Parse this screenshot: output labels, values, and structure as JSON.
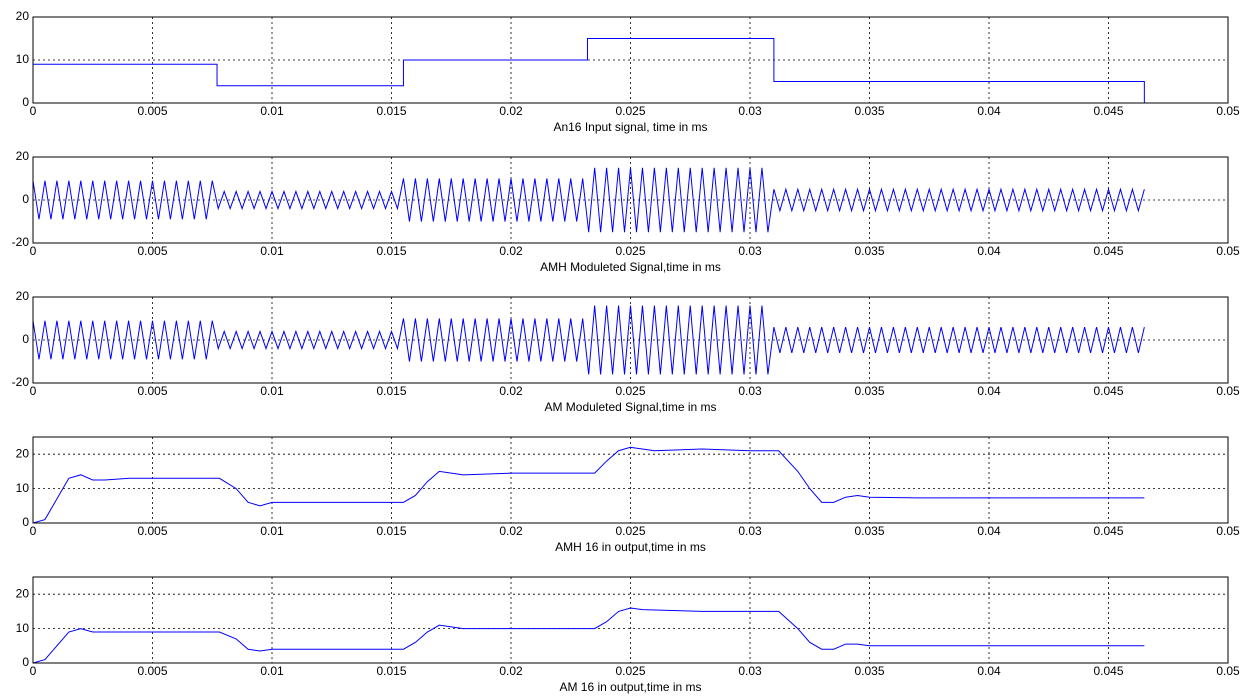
{
  "chart_data": [
    {
      "type": "line",
      "xlabel": "An16 Input signal, time in ms",
      "xlim": [
        0,
        0.05
      ],
      "xticks": [
        0,
        0.005,
        0.01,
        0.015,
        0.02,
        0.025,
        0.03,
        0.035,
        0.04,
        0.045,
        0.05
      ],
      "ylim": [
        0,
        20
      ],
      "yticks": [
        0,
        10,
        20
      ],
      "grid": true,
      "color": "#0000ff",
      "x": [
        0,
        0.0077,
        0.0077,
        0.0155,
        0.0155,
        0.0232,
        0.0232,
        0.031,
        0.031,
        0.0465,
        0.0465
      ],
      "values": [
        9,
        9,
        4,
        4,
        10,
        10,
        15,
        15,
        5,
        5,
        0
      ]
    },
    {
      "type": "line",
      "xlabel": "AMH Moduleted Signal,time in ms",
      "xlim": [
        0,
        0.05
      ],
      "xticks": [
        0,
        0.005,
        0.01,
        0.015,
        0.02,
        0.025,
        0.03,
        0.035,
        0.04,
        0.045,
        0.05
      ],
      "ylim": [
        -20,
        20
      ],
      "yticks": [
        -20,
        0,
        20
      ],
      "grid": true,
      "color": "#0000ff",
      "x": [
        0,
        0.00025,
        0.0005,
        0.00075,
        0.001,
        0.00125,
        0.0015,
        0.00175,
        0.002,
        0.00225,
        0.0025,
        0.00275,
        0.003,
        0.00325,
        0.0035,
        0.00375,
        0.004,
        0.00425,
        0.0045,
        0.00475,
        0.005,
        0.00525,
        0.0055,
        0.00575,
        0.006,
        0.00625,
        0.0065,
        0.00675,
        0.007,
        0.00725,
        0.0075,
        0.00775,
        0.008,
        0.00825,
        0.0085,
        0.00875,
        0.009,
        0.00925,
        0.0095,
        0.00975,
        0.01,
        0.01025,
        0.0105,
        0.01075,
        0.011,
        0.01125,
        0.0115,
        0.01175,
        0.012,
        0.01225,
        0.0125,
        0.01275,
        0.013,
        0.01325,
        0.0135,
        0.01375,
        0.014,
        0.01425,
        0.0145,
        0.01475,
        0.015,
        0.01525,
        0.0155,
        0.01575,
        0.016,
        0.01625,
        0.0165,
        0.01675,
        0.017,
        0.01725,
        0.0175,
        0.01775,
        0.018,
        0.01825,
        0.0185,
        0.01875,
        0.019,
        0.01925,
        0.0195,
        0.01975,
        0.02,
        0.02025,
        0.0205,
        0.02075,
        0.021,
        0.02125,
        0.0215,
        0.02175,
        0.022,
        0.02225,
        0.0225,
        0.02275,
        0.023,
        0.02325,
        0.0235,
        0.02375,
        0.024,
        0.02425,
        0.0245,
        0.02475,
        0.025,
        0.02525,
        0.0255,
        0.02575,
        0.026,
        0.02625,
        0.0265,
        0.02675,
        0.027,
        0.02725,
        0.0275,
        0.02775,
        0.028,
        0.02825,
        0.0285,
        0.02875,
        0.029,
        0.02925,
        0.0295,
        0.02975,
        0.03,
        0.03025,
        0.0305,
        0.03075,
        0.031,
        0.03125,
        0.0315,
        0.03175,
        0.032,
        0.03225,
        0.0325,
        0.03275,
        0.033,
        0.03325,
        0.0335,
        0.03375,
        0.034,
        0.03425,
        0.0345,
        0.03475,
        0.035,
        0.03525,
        0.0355,
        0.03575,
        0.036,
        0.03625,
        0.0365,
        0.03675,
        0.037,
        0.03725,
        0.0375,
        0.03775,
        0.038,
        0.03825,
        0.0385,
        0.03875,
        0.039,
        0.03925,
        0.0395,
        0.03975,
        0.04,
        0.04025,
        0.0405,
        0.04075,
        0.041,
        0.04125,
        0.0415,
        0.04175,
        0.042,
        0.04225,
        0.0425,
        0.04275,
        0.043,
        0.04325,
        0.0435,
        0.04375,
        0.044,
        0.04425,
        0.0445,
        0.04475,
        0.045,
        0.04525,
        0.0455,
        0.04575,
        0.046,
        0.04625,
        0.0465
      ],
      "values": [
        9,
        -9,
        9,
        -9,
        9,
        -9,
        9,
        -9,
        9,
        -9,
        9,
        -9,
        9,
        -9,
        9,
        -9,
        9,
        -9,
        9,
        -9,
        9,
        -9,
        9,
        -9,
        9,
        -9,
        9,
        -9,
        9,
        -9,
        9,
        -4,
        4,
        -4,
        4,
        -4,
        4,
        -4,
        4,
        -4,
        4,
        -4,
        4,
        -4,
        4,
        -4,
        4,
        -4,
        4,
        -4,
        4,
        -4,
        4,
        -4,
        4,
        -4,
        4,
        -4,
        4,
        -4,
        4,
        -4,
        10,
        -10,
        10,
        -10,
        10,
        -10,
        10,
        -10,
        10,
        -10,
        10,
        -10,
        10,
        -10,
        10,
        -10,
        10,
        -10,
        10,
        -10,
        10,
        -10,
        10,
        -10,
        10,
        -10,
        10,
        -10,
        10,
        -10,
        10,
        -15,
        15,
        -15,
        15,
        -15,
        15,
        -15,
        15,
        -15,
        15,
        -15,
        15,
        -15,
        15,
        -15,
        15,
        -15,
        15,
        -15,
        15,
        -15,
        15,
        -15,
        15,
        -15,
        15,
        -15,
        15,
        -15,
        15,
        -15,
        5,
        -5,
        5,
        -5,
        5,
        -5,
        5,
        -5,
        5,
        -5,
        5,
        -5,
        5,
        -5,
        5,
        -5,
        5,
        -5,
        5,
        -5,
        5,
        -5,
        5,
        -5,
        5,
        -5,
        5,
        -5,
        5,
        -5,
        5,
        -5,
        5,
        -5,
        5,
        -5,
        5,
        -5,
        5,
        -5,
        5,
        -5,
        5,
        -5,
        5,
        -5,
        5,
        -5,
        5,
        -5,
        5,
        -5,
        5,
        -5,
        5,
        -5,
        5,
        -5,
        5,
        -5,
        5,
        -5,
        5
      ]
    },
    {
      "type": "line",
      "xlabel": "AM Moduleted Signal,time in ms",
      "xlim": [
        0,
        0.05
      ],
      "xticks": [
        0,
        0.005,
        0.01,
        0.015,
        0.02,
        0.025,
        0.03,
        0.035,
        0.04,
        0.045,
        0.05
      ],
      "ylim": [
        -20,
        20
      ],
      "yticks": [
        -20,
        0,
        20
      ],
      "grid": true,
      "color": "#0000ff",
      "x": [
        0,
        0.00025,
        0.0005,
        0.00075,
        0.001,
        0.00125,
        0.0015,
        0.00175,
        0.002,
        0.00225,
        0.0025,
        0.00275,
        0.003,
        0.00325,
        0.0035,
        0.00375,
        0.004,
        0.00425,
        0.0045,
        0.00475,
        0.005,
        0.00525,
        0.0055,
        0.00575,
        0.006,
        0.00625,
        0.0065,
        0.00675,
        0.007,
        0.00725,
        0.0075,
        0.00775,
        0.008,
        0.00825,
        0.0085,
        0.00875,
        0.009,
        0.00925,
        0.0095,
        0.00975,
        0.01,
        0.01025,
        0.0105,
        0.01075,
        0.011,
        0.01125,
        0.0115,
        0.01175,
        0.012,
        0.01225,
        0.0125,
        0.01275,
        0.013,
        0.01325,
        0.0135,
        0.01375,
        0.014,
        0.01425,
        0.0145,
        0.01475,
        0.015,
        0.01525,
        0.0155,
        0.01575,
        0.016,
        0.01625,
        0.0165,
        0.01675,
        0.017,
        0.01725,
        0.0175,
        0.01775,
        0.018,
        0.01825,
        0.0185,
        0.01875,
        0.019,
        0.01925,
        0.0195,
        0.01975,
        0.02,
        0.02025,
        0.0205,
        0.02075,
        0.021,
        0.02125,
        0.0215,
        0.02175,
        0.022,
        0.02225,
        0.0225,
        0.02275,
        0.023,
        0.02325,
        0.0235,
        0.02375,
        0.024,
        0.02425,
        0.0245,
        0.02475,
        0.025,
        0.02525,
        0.0255,
        0.02575,
        0.026,
        0.02625,
        0.0265,
        0.02675,
        0.027,
        0.02725,
        0.0275,
        0.02775,
        0.028,
        0.02825,
        0.0285,
        0.02875,
        0.029,
        0.02925,
        0.0295,
        0.02975,
        0.03,
        0.03025,
        0.0305,
        0.03075,
        0.031,
        0.03125,
        0.0315,
        0.03175,
        0.032,
        0.03225,
        0.0325,
        0.03275,
        0.033,
        0.03325,
        0.0335,
        0.03375,
        0.034,
        0.03425,
        0.0345,
        0.03475,
        0.035,
        0.03525,
        0.0355,
        0.03575,
        0.036,
        0.03625,
        0.0365,
        0.03675,
        0.037,
        0.03725,
        0.0375,
        0.03775,
        0.038,
        0.03825,
        0.0385,
        0.03875,
        0.039,
        0.03925,
        0.0395,
        0.03975,
        0.04,
        0.04025,
        0.0405,
        0.04075,
        0.041,
        0.04125,
        0.0415,
        0.04175,
        0.042,
        0.04225,
        0.0425,
        0.04275,
        0.043,
        0.04325,
        0.0435,
        0.04375,
        0.044,
        0.04425,
        0.0445,
        0.04475,
        0.045,
        0.04525,
        0.0455,
        0.04575,
        0.046,
        0.04625,
        0.0465
      ],
      "values": [
        9,
        -9,
        9,
        -9,
        9,
        -9,
        9,
        -9,
        9,
        -9,
        9,
        -9,
        9,
        -9,
        9,
        -9,
        9,
        -9,
        9,
        -9,
        9,
        -9,
        9,
        -9,
        9,
        -9,
        9,
        -9,
        9,
        -9,
        9,
        -4,
        4,
        -4,
        4,
        -4,
        4,
        -4,
        4,
        -4,
        4,
        -4,
        4,
        -4,
        4,
        -4,
        4,
        -4,
        4,
        -4,
        4,
        -4,
        4,
        -4,
        4,
        -4,
        4,
        -4,
        4,
        -4,
        4,
        -4,
        10,
        -10,
        10,
        -10,
        10,
        -10,
        10,
        -10,
        10,
        -10,
        10,
        -10,
        10,
        -10,
        10,
        -10,
        10,
        -10,
        10,
        -10,
        10,
        -10,
        10,
        -10,
        10,
        -10,
        10,
        -10,
        10,
        -10,
        10,
        -16,
        16,
        -16,
        16,
        -16,
        16,
        -16,
        16,
        -16,
        16,
        -16,
        16,
        -16,
        16,
        -16,
        16,
        -16,
        16,
        -16,
        16,
        -16,
        16,
        -16,
        16,
        -16,
        16,
        -16,
        16,
        -16,
        16,
        -16,
        6,
        -6,
        6,
        -6,
        6,
        -6,
        6,
        -6,
        6,
        -6,
        6,
        -6,
        6,
        -6,
        6,
        -6,
        6,
        -6,
        6,
        -6,
        6,
        -6,
        6,
        -6,
        6,
        -6,
        6,
        -6,
        6,
        -6,
        6,
        -6,
        6,
        -6,
        6,
        -6,
        6,
        -6,
        6,
        -6,
        6,
        -6,
        6,
        -6,
        6,
        -6,
        6,
        -6,
        6,
        -6,
        6,
        -6,
        6,
        -6,
        6,
        -6,
        6,
        -6,
        6,
        -6,
        6,
        -6,
        6
      ]
    },
    {
      "type": "line",
      "xlabel": "AMH 16 in output,time in ms",
      "xlim": [
        0,
        0.05
      ],
      "xticks": [
        0,
        0.005,
        0.01,
        0.015,
        0.02,
        0.025,
        0.03,
        0.035,
        0.04,
        0.045,
        0.05
      ],
      "ylim": [
        0,
        25
      ],
      "yticks": [
        0,
        10,
        20
      ],
      "grid": true,
      "color": "#0000ff",
      "x": [
        0,
        0.0005,
        0.001,
        0.0015,
        0.002,
        0.0025,
        0.003,
        0.004,
        0.006,
        0.0078,
        0.0085,
        0.009,
        0.0095,
        0.01,
        0.012,
        0.0155,
        0.016,
        0.0165,
        0.017,
        0.0175,
        0.018,
        0.02,
        0.0235,
        0.024,
        0.0245,
        0.025,
        0.0255,
        0.026,
        0.028,
        0.03,
        0.0312,
        0.032,
        0.0325,
        0.033,
        0.0335,
        0.034,
        0.0345,
        0.035,
        0.037,
        0.0465
      ],
      "values": [
        0,
        1,
        7,
        13,
        14,
        12.5,
        12.5,
        13,
        13,
        13,
        10,
        6,
        5,
        6,
        6,
        6,
        8,
        12,
        15,
        14.5,
        14,
        14.5,
        14.5,
        18,
        21,
        22,
        21.5,
        21,
        21.5,
        21,
        21,
        15,
        10,
        6,
        6,
        7.5,
        8,
        7.5,
        7.3,
        7.3
      ]
    },
    {
      "type": "line",
      "xlabel": "AM 16 in output,time in ms",
      "xlim": [
        0,
        0.05
      ],
      "xticks": [
        0,
        0.005,
        0.01,
        0.015,
        0.02,
        0.025,
        0.03,
        0.035,
        0.04,
        0.045,
        0.05
      ],
      "ylim": [
        0,
        25
      ],
      "yticks": [
        0,
        10,
        20
      ],
      "grid": true,
      "color": "#0000ff",
      "x": [
        0,
        0.0005,
        0.001,
        0.0015,
        0.002,
        0.0025,
        0.003,
        0.004,
        0.0078,
        0.0085,
        0.009,
        0.0095,
        0.01,
        0.012,
        0.0155,
        0.016,
        0.0165,
        0.017,
        0.0175,
        0.018,
        0.0235,
        0.024,
        0.0245,
        0.025,
        0.0255,
        0.028,
        0.0312,
        0.032,
        0.0325,
        0.033,
        0.0335,
        0.034,
        0.0345,
        0.035,
        0.0465
      ],
      "values": [
        0,
        1,
        5,
        9,
        10,
        9,
        9,
        9,
        9,
        7,
        4,
        3.5,
        4,
        4,
        4,
        6,
        9,
        11,
        10.5,
        10,
        10,
        12,
        15,
        16,
        15.5,
        15,
        15,
        10,
        6,
        4,
        4,
        5.5,
        5.5,
        5,
        5
      ]
    }
  ]
}
